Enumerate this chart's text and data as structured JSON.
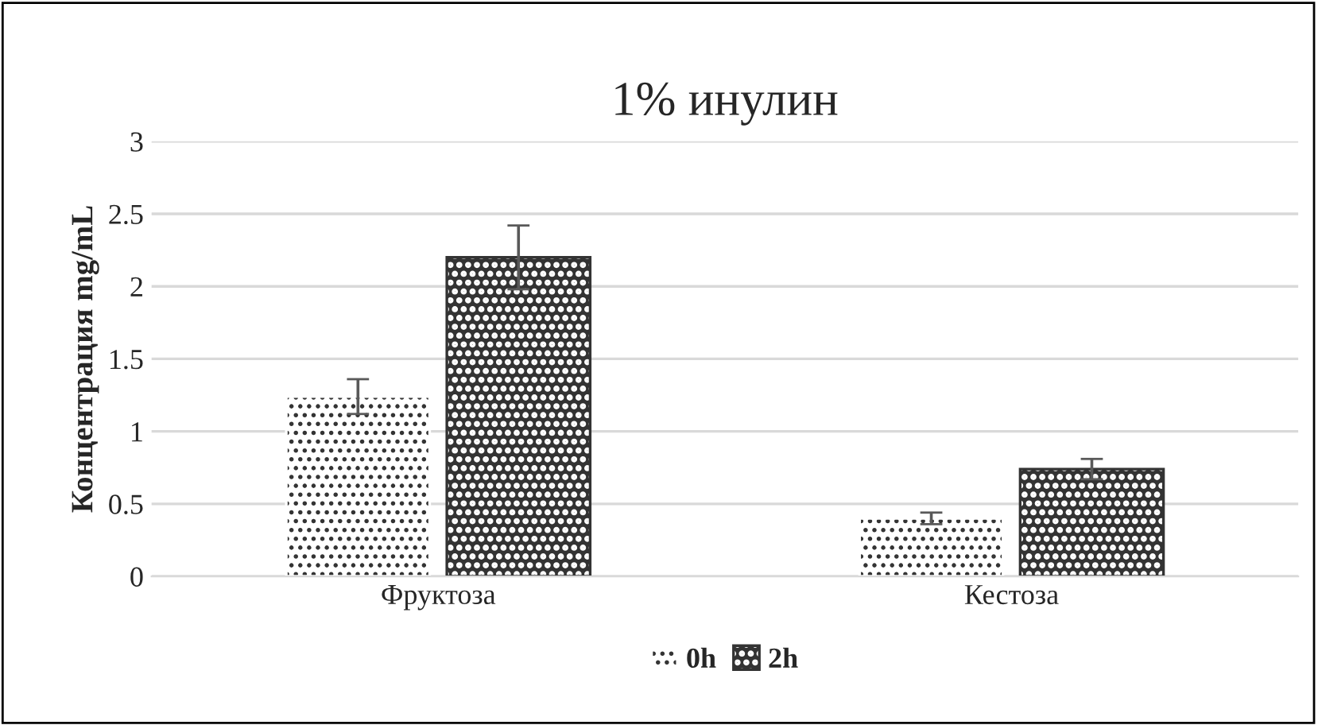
{
  "chart_data": {
    "type": "bar",
    "title": "1% инулин",
    "ylabel": "Концентрация mg/mL",
    "categories": [
      "Фруктоза",
      "Кестоза"
    ],
    "series": [
      {
        "name": "0h",
        "color": "#ffffff",
        "values": [
          1.24,
          0.4
        ],
        "errors": [
          0.12,
          0.04
        ]
      },
      {
        "name": "2h",
        "color": "#333333",
        "values": [
          2.2,
          0.74
        ],
        "errors": [
          0.22,
          0.07
        ]
      }
    ],
    "ylim": [
      0,
      3
    ],
    "yticks": [
      0,
      0.5,
      1,
      1.5,
      2,
      2.5,
      3
    ],
    "grid": "y",
    "legend": "bottom"
  }
}
